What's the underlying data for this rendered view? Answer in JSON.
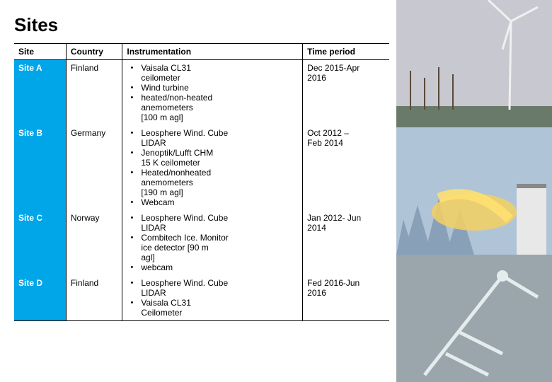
{
  "title": "Sites",
  "accent_color": "#00a6e8",
  "columns": {
    "site": "Site",
    "country": "Country",
    "instrumentation": "Instrumentation",
    "period": "Time period"
  },
  "rows": [
    {
      "site": "Site A",
      "country": "Finland",
      "instruments": [
        "Vaisala CL31\nceilometer",
        " Wind turbine",
        "heated/non-heated\nanemometers\n [100 m agl]"
      ],
      "period": "Dec 2015-Apr\n2016"
    },
    {
      "site": "Site B",
      "country": "Germany",
      "instruments": [
        "Leosphere Wind. Cube\nLIDAR",
        "Jenoptik/Lufft CHM\n15 K ceilometer",
        "Heated/nonheated\nanemometers\n[190 m agl]",
        "Webcam"
      ],
      "period": "Oct    2012   –\nFeb 2014"
    },
    {
      "site": "Site C",
      "country": "Norway",
      "instruments": [
        "Leosphere Wind. Cube\nLIDAR",
        "Combitech Ice. Monitor\nice detector [90 m\nagl]",
        "webcam"
      ],
      "period": "Jan 2012- Jun\n2014"
    },
    {
      "site": "Site D",
      "country": "Finland",
      "instruments": [
        "Leosphere Wind. Cube\nLIDAR",
        "Vaisala CL31\nCeilometer"
      ],
      "period": "Fed 2016-Jun\n2016"
    }
  ],
  "placeholders": {
    "top": {
      "bg": "#c8c8d0",
      "accent": "#e8e8ee",
      "label": "wind-turbine-photo"
    },
    "mid": {
      "bg": "#b0c4d8",
      "accent": "#f4d060",
      "label": "icy-forest-photo"
    },
    "bot": {
      "bg": "#9aa6ac",
      "accent": "#d0d8dc",
      "label": "frosted-antenna-photo"
    }
  }
}
